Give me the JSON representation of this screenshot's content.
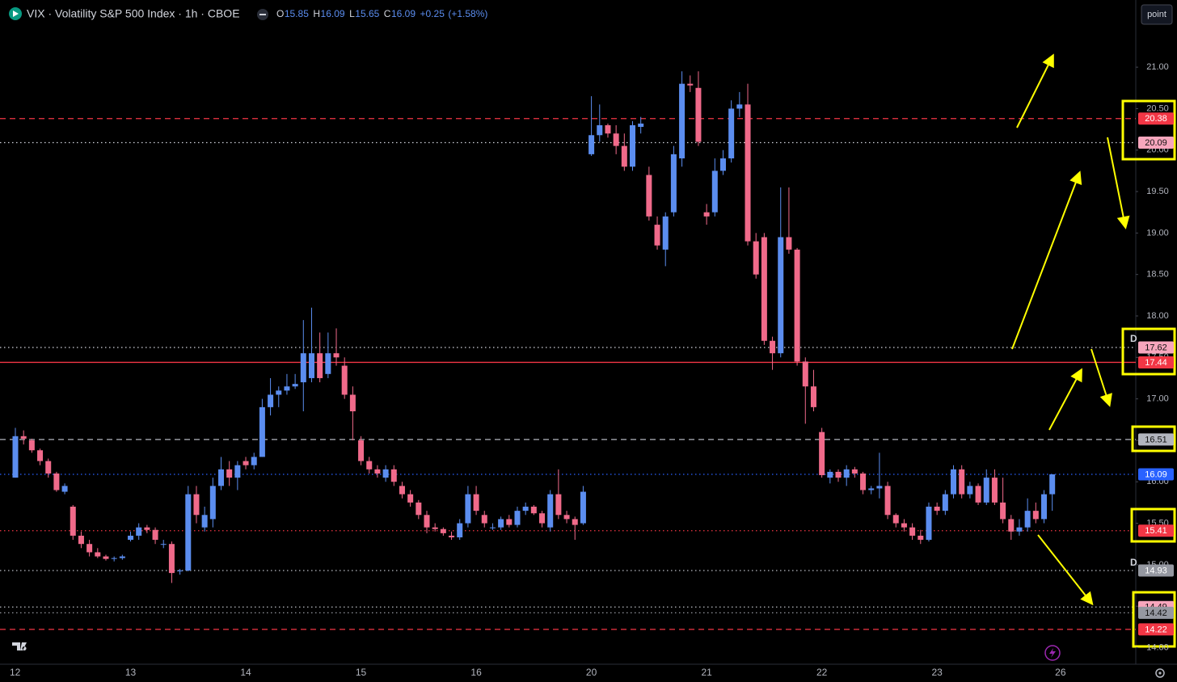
{
  "header": {
    "title": "VIX · Volatility S&P 500 Index · 1h · CBOE",
    "ohlc": [
      {
        "label": "O",
        "value": 15.85
      },
      {
        "label": "H",
        "value": 16.09
      },
      {
        "label": "L",
        "value": 15.65
      },
      {
        "label": "C",
        "value": 16.09
      }
    ],
    "change": {
      "value": 0.25,
      "label": "+0.25"
    },
    "change_pct": {
      "value": 1.58,
      "label": "(+1.58%)"
    },
    "button": "point",
    "markers": [
      "D",
      "D"
    ]
  },
  "chart_data": {
    "type": "candlestick",
    "up_color": "#5b8def",
    "down_color": "#f06a8a",
    "categories": [
      "12",
      null,
      null,
      null,
      null,
      null,
      null,
      null,
      null,
      null,
      null,
      null,
      null,
      null,
      "13",
      null,
      null,
      null,
      null,
      null,
      null,
      null,
      null,
      null,
      null,
      null,
      null,
      null,
      "14",
      null,
      null,
      null,
      null,
      null,
      null,
      null,
      null,
      null,
      null,
      null,
      null,
      null,
      "15",
      null,
      null,
      null,
      null,
      null,
      null,
      null,
      null,
      null,
      null,
      null,
      null,
      null,
      "16",
      null,
      null,
      null,
      null,
      null,
      null,
      null,
      null,
      null,
      null,
      null,
      null,
      null,
      "20",
      null,
      null,
      null,
      null,
      null,
      null,
      null,
      null,
      null,
      null,
      null,
      null,
      null,
      "21",
      null,
      null,
      null,
      null,
      null,
      null,
      null,
      null,
      null,
      null,
      null,
      null,
      null,
      "22",
      null,
      null,
      null,
      null,
      null,
      null,
      null,
      null,
      null,
      null,
      null,
      null,
      null,
      "23",
      null,
      null,
      null,
      null,
      null,
      null,
      null,
      null,
      null,
      null,
      null,
      null,
      null,
      null,
      "26"
    ],
    "open": [
      16.05,
      16.55,
      16.5,
      16.38,
      16.25,
      16.1,
      15.88,
      15.7,
      15.35,
      15.25,
      15.15,
      15.1,
      15.07,
      15.08,
      15.3,
      15.35,
      15.45,
      15.42,
      15.25,
      15.25,
      14.92,
      14.93,
      15.85,
      15.45,
      15.55,
      15.95,
      16.15,
      16.05,
      16.25,
      16.2,
      16.3,
      16.9,
      17.05,
      17.1,
      17.15,
      17.2,
      17.25,
      17.55,
      17.3,
      17.55,
      17.4,
      17.05,
      16.5,
      16.25,
      16.15,
      16.05,
      16.15,
      15.95,
      15.85,
      15.75,
      15.6,
      15.45,
      15.43,
      15.35,
      15.33,
      15.5,
      15.85,
      15.6,
      15.45,
      15.45,
      15.55,
      15.48,
      15.65,
      15.7,
      15.62,
      15.45,
      15.85,
      15.6,
      15.55,
      15.5,
      19.95,
      20.18,
      20.3,
      20.2,
      20.05,
      19.8,
      20.28,
      19.7,
      19.1,
      18.8,
      19.25,
      19.9,
      20.8,
      20.75,
      19.25,
      19.25,
      19.75,
      19.9,
      20.5,
      20.55,
      18.9,
      18.95,
      17.7,
      17.55,
      18.95,
      18.8,
      17.45,
      17.15,
      16.6,
      16.05,
      16.12,
      16.05,
      16.15,
      16.1,
      15.9,
      15.92,
      15.95,
      15.6,
      15.5,
      15.45,
      15.35,
      15.3,
      15.7,
      15.65,
      15.85,
      16.15,
      15.85,
      15.95,
      15.75,
      16.05,
      15.75,
      15.55,
      15.4,
      15.45,
      15.65,
      15.55,
      15.85,
      null
    ],
    "high": [
      16.65,
      16.62,
      16.52,
      16.4,
      16.28,
      16.12,
      15.98,
      15.72,
      15.4,
      15.3,
      15.2,
      15.12,
      15.1,
      15.12,
      15.4,
      15.5,
      15.48,
      15.45,
      15.3,
      15.28,
      14.95,
      15.95,
      15.95,
      15.7,
      16.05,
      16.3,
      16.25,
      16.25,
      16.3,
      16.35,
      17.0,
      17.25,
      17.15,
      17.3,
      17.3,
      17.95,
      18.1,
      17.8,
      17.8,
      17.85,
      17.5,
      17.15,
      16.55,
      16.3,
      16.2,
      16.2,
      16.2,
      16.0,
      15.9,
      15.78,
      15.65,
      15.5,
      15.45,
      15.4,
      15.55,
      15.95,
      15.95,
      15.65,
      15.5,
      15.58,
      15.6,
      15.7,
      15.75,
      15.72,
      15.65,
      15.9,
      16.15,
      15.65,
      15.58,
      15.95,
      20.65,
      20.55,
      20.32,
      20.3,
      20.2,
      20.35,
      20.4,
      19.8,
      19.2,
      19.25,
      20.05,
      20.95,
      20.9,
      20.95,
      19.35,
      19.9,
      20.0,
      20.6,
      20.7,
      20.8,
      19.0,
      19.0,
      17.75,
      19.55,
      19.55,
      18.82,
      17.5,
      17.35,
      16.65,
      16.15,
      16.15,
      16.2,
      16.18,
      16.12,
      15.95,
      16.35,
      16.0,
      15.62,
      15.55,
      15.5,
      15.42,
      15.75,
      15.75,
      15.9,
      16.2,
      16.2,
      16.0,
      15.98,
      16.15,
      16.15,
      16.05,
      15.6,
      15.55,
      15.8,
      15.75,
      15.9,
      16.09,
      null
    ],
    "low": [
      16.05,
      16.45,
      16.35,
      16.2,
      16.05,
      15.88,
      15.85,
      15.3,
      15.2,
      15.1,
      15.08,
      15.05,
      15.04,
      15.06,
      15.28,
      15.3,
      15.38,
      15.25,
      15.2,
      14.78,
      14.88,
      14.92,
      15.5,
      15.4,
      15.45,
      15.9,
      15.95,
      15.9,
      16.15,
      16.15,
      16.3,
      16.8,
      16.9,
      17.05,
      17.12,
      16.85,
      17.2,
      17.2,
      17.25,
      17.4,
      17.0,
      16.5,
      16.2,
      16.1,
      16.05,
      16.0,
      15.95,
      15.8,
      15.7,
      15.55,
      15.38,
      15.4,
      15.35,
      15.3,
      15.3,
      15.45,
      15.6,
      15.45,
      15.42,
      15.42,
      15.45,
      15.45,
      15.6,
      15.6,
      15.45,
      15.4,
      15.55,
      15.5,
      15.3,
      15.48,
      19.93,
      20.1,
      20.15,
      19.95,
      19.75,
      19.75,
      20.2,
      19.15,
      18.8,
      18.6,
      19.2,
      19.8,
      20.7,
      20.05,
      19.1,
      19.2,
      19.7,
      19.85,
      20.4,
      18.85,
      18.45,
      17.65,
      17.35,
      17.5,
      18.75,
      17.4,
      16.7,
      16.85,
      16.05,
      15.98,
      16.0,
      15.95,
      16.05,
      15.85,
      15.85,
      15.8,
      15.55,
      15.45,
      15.4,
      15.3,
      15.25,
      15.28,
      15.6,
      15.6,
      15.8,
      15.8,
      15.8,
      15.72,
      15.72,
      15.72,
      15.5,
      15.3,
      15.35,
      15.4,
      15.5,
      15.5,
      15.65,
      null
    ],
    "close": [
      16.55,
      16.52,
      16.38,
      16.25,
      16.1,
      15.9,
      15.95,
      15.35,
      15.25,
      15.15,
      15.1,
      15.07,
      15.08,
      15.1,
      15.35,
      15.45,
      15.42,
      15.3,
      15.25,
      14.9,
      14.93,
      15.85,
      15.6,
      15.6,
      15.95,
      16.15,
      16.05,
      16.2,
      16.2,
      16.3,
      16.9,
      17.05,
      17.1,
      17.15,
      17.18,
      17.55,
      17.55,
      17.25,
      17.55,
      17.5,
      17.05,
      16.85,
      16.25,
      16.15,
      16.1,
      16.15,
      16.0,
      15.85,
      15.75,
      15.6,
      15.45,
      15.43,
      15.38,
      15.33,
      15.5,
      15.85,
      15.65,
      15.5,
      15.45,
      15.55,
      15.48,
      15.65,
      15.7,
      15.62,
      15.5,
      15.85,
      15.6,
      15.55,
      15.48,
      15.88,
      20.18,
      20.3,
      20.2,
      20.05,
      19.8,
      20.3,
      20.32,
      19.2,
      18.85,
      19.2,
      19.95,
      20.8,
      20.78,
      20.1,
      19.2,
      19.75,
      19.9,
      20.5,
      20.55,
      18.9,
      18.5,
      17.7,
      17.55,
      18.95,
      18.8,
      17.45,
      17.15,
      16.9,
      16.08,
      16.12,
      16.05,
      16.15,
      16.1,
      15.9,
      15.92,
      15.95,
      15.6,
      15.5,
      15.45,
      15.35,
      15.3,
      15.7,
      15.65,
      15.85,
      16.15,
      15.85,
      15.95,
      15.75,
      16.05,
      15.75,
      15.55,
      15.4,
      15.45,
      15.65,
      15.55,
      15.85,
      16.09,
      null
    ],
    "ylim": [
      13.8,
      21.81
    ],
    "yticks": [
      {
        "value": 14,
        "label": "14.00"
      },
      {
        "value": 14.5,
        "label": "14.50"
      },
      {
        "value": 15,
        "label": "15.00"
      },
      {
        "value": 15.5,
        "label": "15.50"
      },
      {
        "value": 16,
        "label": "16.00"
      },
      {
        "value": 16.5,
        "label": "16.50"
      },
      {
        "value": 17,
        "label": "17.00"
      },
      {
        "value": 17.5,
        "label": "17.50"
      },
      {
        "value": 18,
        "label": "18.00"
      },
      {
        "value": 18.5,
        "label": "18.50"
      },
      {
        "value": 19,
        "label": "19.00"
      },
      {
        "value": 19.5,
        "label": "19.50"
      },
      {
        "value": 20,
        "label": "20.00"
      },
      {
        "value": 20.5,
        "label": "20.50"
      },
      {
        "value": 21,
        "label": "21.00"
      }
    ],
    "levels": [
      {
        "value": 20.38,
        "color": "#f23645",
        "style": "dashed",
        "label_bg": "#f23645",
        "label_fg": "#ffffff"
      },
      {
        "value": 20.09,
        "color": "#d1d4dc",
        "style": "dotted",
        "label_bg": "#f7a6bd",
        "label_fg": "#111111"
      },
      {
        "value": 17.62,
        "color": "#d1d4dc",
        "style": "dotted",
        "label_bg": "#f7a6bd",
        "label_fg": "#111111"
      },
      {
        "value": 17.44,
        "color": "#f23645",
        "style": "solid",
        "label_bg": "#f23645",
        "label_fg": "#ffffff"
      },
      {
        "value": 16.51,
        "color": "#b2b5be",
        "style": "dashed",
        "label_bg": "#b2b5be",
        "label_fg": "#111111"
      },
      {
        "value": 16.09,
        "color": "#2962ff",
        "style": "dotted",
        "label_bg": "#2962ff",
        "label_fg": "#ffffff"
      },
      {
        "value": 15.41,
        "color": "#f23645",
        "style": "dotted",
        "label_bg": "#f23645",
        "label_fg": "#ffffff"
      },
      {
        "value": 14.93,
        "color": "#d1d4dc",
        "style": "dotted",
        "label_bg": "#9598a1",
        "label_fg": "#ffffff"
      },
      {
        "value": 14.49,
        "color": "#d1d4dc",
        "style": "dotted",
        "label_bg": "#f7a6bd",
        "label_fg": "#111111"
      },
      {
        "value": 14.42,
        "color": "#9598a1",
        "style": "dotted",
        "label_bg": "#9598a1",
        "label_fg": "#111111"
      },
      {
        "value": 14.22,
        "color": "#f23645",
        "style": "dashed",
        "label_bg": "#f23645",
        "label_fg": "#ffffff"
      }
    ]
  }
}
